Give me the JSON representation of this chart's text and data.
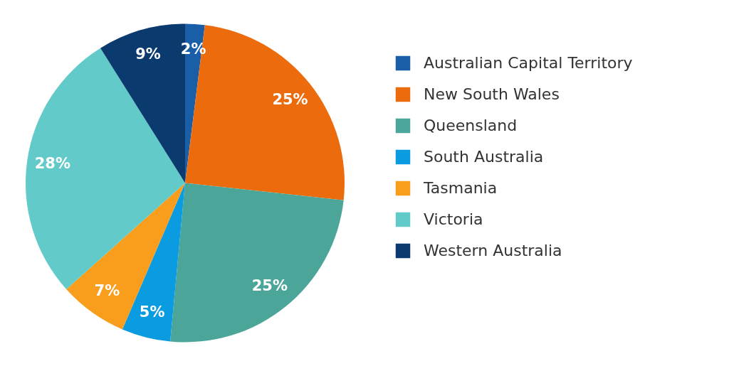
{
  "chart_data": {
    "type": "pie",
    "categories": [
      "Australian Capital Territory",
      "New South Wales",
      "Queensland",
      "South Australia",
      "Tasmania",
      "Victoria",
      "Western Australia"
    ],
    "values": [
      2,
      25,
      25,
      5,
      7,
      28,
      9
    ],
    "value_labels": [
      "2%",
      "25%",
      "25%",
      "5%",
      "7%",
      "28%",
      "9%"
    ],
    "colors": [
      "#1a5ea8",
      "#ec6b0c",
      "#4ba599",
      "#0a9be0",
      "#f99d1c",
      "#62cac8",
      "#0a3a6e"
    ],
    "legend": "right"
  }
}
